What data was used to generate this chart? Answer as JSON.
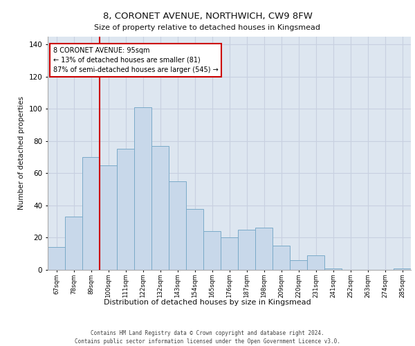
{
  "title1": "8, CORONET AVENUE, NORTHWICH, CW9 8FW",
  "title2": "Size of property relative to detached houses in Kingsmead",
  "xlabel": "Distribution of detached houses by size in Kingsmead",
  "ylabel": "Number of detached properties",
  "categories": [
    "67sqm",
    "78sqm",
    "89sqm",
    "100sqm",
    "111sqm",
    "122sqm",
    "132sqm",
    "143sqm",
    "154sqm",
    "165sqm",
    "176sqm",
    "187sqm",
    "198sqm",
    "209sqm",
    "220sqm",
    "231sqm",
    "241sqm",
    "252sqm",
    "263sqm",
    "274sqm",
    "285sqm"
  ],
  "values": [
    14,
    33,
    70,
    65,
    75,
    101,
    77,
    55,
    38,
    24,
    20,
    25,
    26,
    15,
    6,
    9,
    1,
    0,
    0,
    0,
    1
  ],
  "bar_color": "#c8d8ea",
  "bar_edge_color": "#7aaac8",
  "grid_color": "#c8d0e0",
  "background_color": "#dde6f0",
  "vline_color": "#cc0000",
  "vline_pos": 2.5,
  "annotation_text": "8 CORONET AVENUE: 95sqm\n← 13% of detached houses are smaller (81)\n87% of semi-detached houses are larger (545) →",
  "annotation_box_color": "#ffffff",
  "annotation_box_edge": "#cc0000",
  "ylim": [
    0,
    145
  ],
  "yticks": [
    0,
    20,
    40,
    60,
    80,
    100,
    120,
    140
  ],
  "footer1": "Contains HM Land Registry data © Crown copyright and database right 2024.",
  "footer2": "Contains public sector information licensed under the Open Government Licence v3.0."
}
